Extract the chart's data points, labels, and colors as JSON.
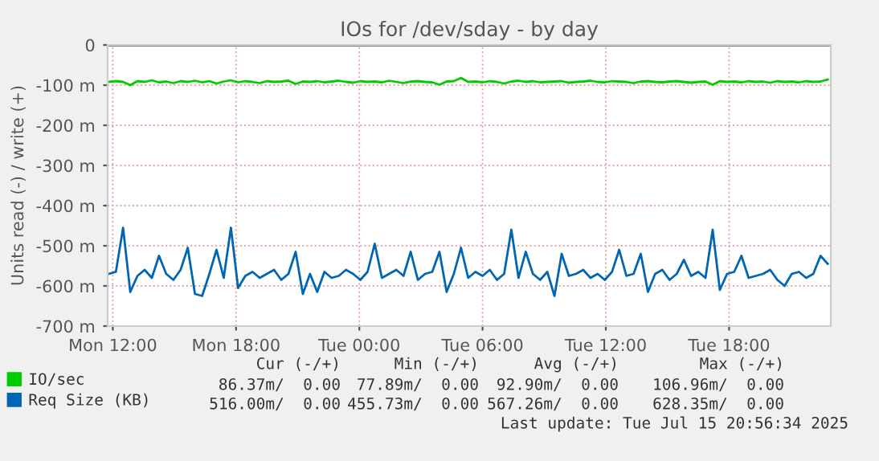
{
  "chart_data": {
    "type": "line",
    "title": "IOs for /dev/sday - by day",
    "ylabel": "Units read (-) / write (+)",
    "x": [
      "2025-07-14T11:48",
      "2025-07-14T12:09",
      "2025-07-14T12:30",
      "2025-07-14T12:51",
      "2025-07-14T13:12",
      "2025-07-14T13:33",
      "2025-07-14T13:54",
      "2025-07-14T14:15",
      "2025-07-14T14:36",
      "2025-07-14T14:57",
      "2025-07-14T15:18",
      "2025-07-14T15:39",
      "2025-07-14T16:00",
      "2025-07-14T16:21",
      "2025-07-14T16:42",
      "2025-07-14T17:03",
      "2025-07-14T17:24",
      "2025-07-14T17:45",
      "2025-07-14T18:06",
      "2025-07-14T18:27",
      "2025-07-14T18:48",
      "2025-07-14T19:09",
      "2025-07-14T19:30",
      "2025-07-14T19:51",
      "2025-07-14T20:12",
      "2025-07-14T20:33",
      "2025-07-14T20:54",
      "2025-07-14T21:15",
      "2025-07-14T21:36",
      "2025-07-14T21:57",
      "2025-07-14T22:18",
      "2025-07-14T22:39",
      "2025-07-14T23:00",
      "2025-07-14T23:21",
      "2025-07-14T23:42",
      "2025-07-15T00:03",
      "2025-07-15T00:24",
      "2025-07-15T00:45",
      "2025-07-15T01:06",
      "2025-07-15T01:27",
      "2025-07-15T01:48",
      "2025-07-15T02:09",
      "2025-07-15T02:30",
      "2025-07-15T02:51",
      "2025-07-15T03:12",
      "2025-07-15T03:33",
      "2025-07-15T03:54",
      "2025-07-15T04:15",
      "2025-07-15T04:36",
      "2025-07-15T04:57",
      "2025-07-15T05:18",
      "2025-07-15T05:39",
      "2025-07-15T06:00",
      "2025-07-15T06:21",
      "2025-07-15T06:42",
      "2025-07-15T07:03",
      "2025-07-15T07:24",
      "2025-07-15T07:45",
      "2025-07-15T08:06",
      "2025-07-15T08:27",
      "2025-07-15T08:48",
      "2025-07-15T09:09",
      "2025-07-15T09:30",
      "2025-07-15T09:51",
      "2025-07-15T10:12",
      "2025-07-15T10:33",
      "2025-07-15T10:54",
      "2025-07-15T11:15",
      "2025-07-15T11:36",
      "2025-07-15T11:57",
      "2025-07-15T12:18",
      "2025-07-15T12:39",
      "2025-07-15T13:00",
      "2025-07-15T13:21",
      "2025-07-15T13:42",
      "2025-07-15T14:03",
      "2025-07-15T14:24",
      "2025-07-15T14:45",
      "2025-07-15T15:06",
      "2025-07-15T15:27",
      "2025-07-15T15:48",
      "2025-07-15T16:09",
      "2025-07-15T16:30",
      "2025-07-15T16:51",
      "2025-07-15T17:12",
      "2025-07-15T17:33",
      "2025-07-15T17:54",
      "2025-07-15T18:15",
      "2025-07-15T18:36",
      "2025-07-15T18:57",
      "2025-07-15T19:18",
      "2025-07-15T19:39",
      "2025-07-15T20:00",
      "2025-07-15T20:21",
      "2025-07-15T20:42",
      "2025-07-15T21:03",
      "2025-07-15T21:24",
      "2025-07-15T21:45",
      "2025-07-15T22:06",
      "2025-07-15T22:27",
      "2025-07-15T22:48"
    ],
    "series": [
      {
        "name": "IO/sec",
        "color": "#00cc00",
        "values": [
          -92,
          -90,
          -92,
          -100,
          -90,
          -92,
          -88,
          -93,
          -91,
          -95,
          -90,
          -92,
          -89,
          -93,
          -90,
          -96,
          -91,
          -88,
          -93,
          -90,
          -92,
          -95,
          -90,
          -92,
          -91,
          -89,
          -97,
          -91,
          -92,
          -90,
          -93,
          -91,
          -89,
          -92,
          -94,
          -90,
          -92,
          -91,
          -93,
          -89,
          -92,
          -95,
          -91,
          -90,
          -92,
          -93,
          -99,
          -91,
          -90,
          -82,
          -92,
          -91,
          -93,
          -90,
          -92,
          -96,
          -91,
          -89,
          -92,
          -90,
          -93,
          -92,
          -91,
          -90,
          -94,
          -92,
          -91,
          -89,
          -92,
          -93,
          -90,
          -91,
          -92,
          -95,
          -91,
          -90,
          -92,
          -93,
          -91,
          -90,
          -92,
          -94,
          -92,
          -91,
          -99,
          -90,
          -92,
          -91,
          -93,
          -90,
          -92,
          -91,
          -94,
          -90,
          -92,
          -91,
          -93,
          -90,
          -92,
          -91,
          -86
        ]
      },
      {
        "name": "Req Size (KB)",
        "color": "#0066b3",
        "values": [
          -570,
          -565,
          -455,
          -615,
          -575,
          -560,
          -580,
          -525,
          -570,
          -585,
          -560,
          -505,
          -620,
          -625,
          -570,
          -510,
          -580,
          -455,
          -605,
          -575,
          -565,
          -580,
          -570,
          -560,
          -585,
          -570,
          -515,
          -620,
          -570,
          -615,
          -565,
          -580,
          -575,
          -560,
          -570,
          -585,
          -565,
          -495,
          -580,
          -570,
          -560,
          -575,
          -515,
          -585,
          -570,
          -565,
          -515,
          -615,
          -570,
          -505,
          -580,
          -565,
          -575,
          -560,
          -585,
          -570,
          -460,
          -580,
          -515,
          -570,
          -585,
          -565,
          -625,
          -520,
          -575,
          -570,
          -560,
          -580,
          -570,
          -585,
          -565,
          -510,
          -575,
          -570,
          -520,
          -615,
          -570,
          -560,
          -585,
          -570,
          -535,
          -575,
          -565,
          -580,
          -460,
          -610,
          -570,
          -565,
          -525,
          -580,
          -575,
          -570,
          -560,
          -585,
          -600,
          -570,
          -565,
          -580,
          -570,
          -525,
          -545
        ]
      }
    ],
    "xlim": [
      "2025-07-14T11:45",
      "2025-07-15T22:57"
    ],
    "xticks": [
      {
        "value": "2025-07-14T12:00",
        "label": "Mon 12:00"
      },
      {
        "value": "2025-07-14T18:00",
        "label": "Mon 18:00"
      },
      {
        "value": "2025-07-15T00:00",
        "label": "Tue 00:00"
      },
      {
        "value": "2025-07-15T06:00",
        "label": "Tue 06:00"
      },
      {
        "value": "2025-07-15T12:00",
        "label": "Tue 12:00"
      },
      {
        "value": "2025-07-15T18:00",
        "label": "Tue 18:00"
      }
    ],
    "ylim": [
      -700,
      0
    ],
    "yticks": [
      {
        "value": -700,
        "label": "-700 m"
      },
      {
        "value": -600,
        "label": "-600 m"
      },
      {
        "value": -500,
        "label": "-500 m"
      },
      {
        "value": -400,
        "label": "-400 m"
      },
      {
        "value": -300,
        "label": "-300 m"
      },
      {
        "value": -200,
        "label": "-200 m"
      },
      {
        "value": -100,
        "label": "-100 m"
      },
      0
    ],
    "grid": true,
    "legend": "bottom left",
    "marker": "none",
    "line_style": "solid",
    "annotations": [
      "Cur (-/+)",
      "Min (-/+)",
      "Avg (-/+)",
      "Max (-/+)",
      "86.37m/  0.00",
      "77.89m/  0.00",
      "92.90m/  0.00",
      "106.96m/  0.00",
      "516.00m/  0.00",
      "455.73m/  0.00",
      "567.26m/  0.00",
      "628.35m/  0.00",
      "Last update: Tue Jul 15 20:56:34 2025"
    ]
  }
}
